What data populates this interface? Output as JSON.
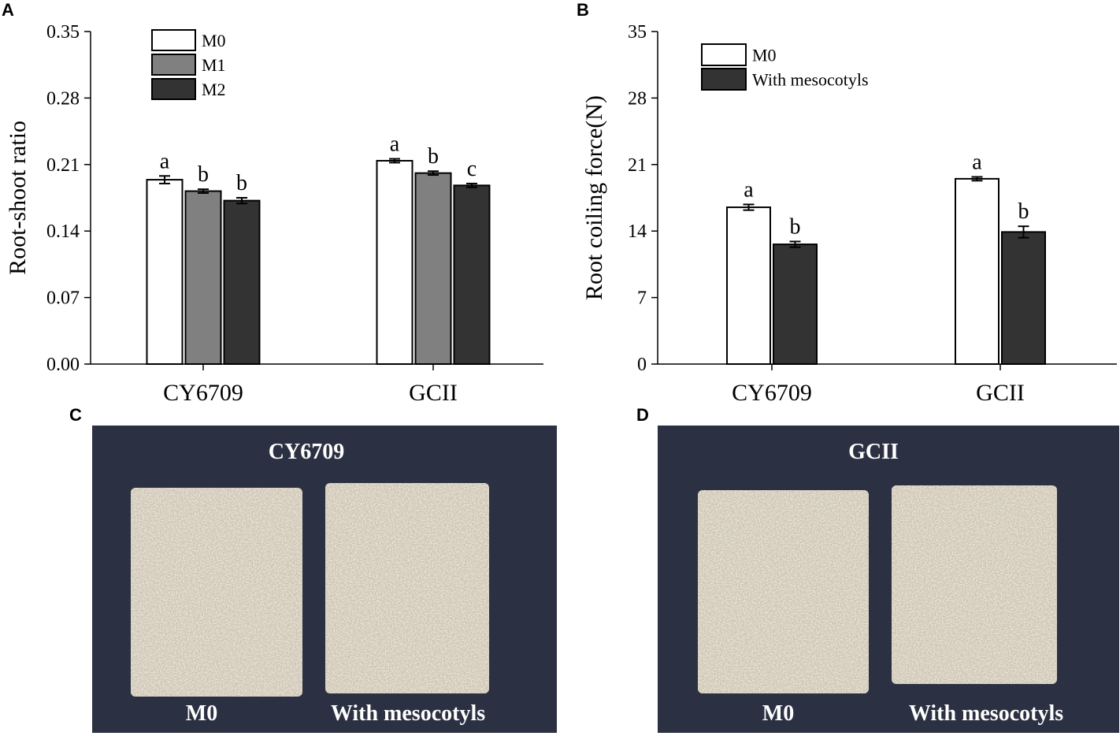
{
  "colors": {
    "m0": "#ffffff",
    "m1": "#808080",
    "m2": "#333333",
    "with_mesocotyls": "#333333",
    "photo_background": "#2b3142",
    "mat": "#cdc4b3"
  },
  "chart_data": [
    {
      "panel": "A",
      "type": "bar",
      "ylabel": "Root-shoot ratio",
      "xlabel": "",
      "ylim": [
        0,
        0.35
      ],
      "yticks": [
        "0.00",
        "0.07",
        "0.14",
        "0.21",
        "0.28",
        "0.35"
      ],
      "ytick_values": [
        0,
        0.07,
        0.14,
        0.21,
        0.28,
        0.35
      ],
      "categories": [
        "CY6709",
        "GCII"
      ],
      "legend_position": "top-left",
      "series": [
        {
          "name": "M0",
          "color_key": "m0",
          "values": [
            0.194,
            0.214
          ],
          "errors": [
            0.004,
            0.002
          ],
          "letters": [
            "a",
            "a"
          ]
        },
        {
          "name": "M1",
          "color_key": "m1",
          "values": [
            0.182,
            0.201
          ],
          "errors": [
            0.002,
            0.002
          ],
          "letters": [
            "b",
            "b"
          ]
        },
        {
          "name": "M2",
          "color_key": "m2",
          "values": [
            0.172,
            0.188
          ],
          "errors": [
            0.003,
            0.002
          ],
          "letters": [
            "b",
            "c"
          ]
        }
      ]
    },
    {
      "panel": "B",
      "type": "bar",
      "ylabel": "Root coiling force(N)",
      "xlabel": "",
      "ylim": [
        0,
        35
      ],
      "yticks": [
        "0",
        "7",
        "14",
        "21",
        "28",
        "35"
      ],
      "ytick_values": [
        0,
        7,
        14,
        21,
        28,
        35
      ],
      "categories": [
        "CY6709",
        "GCII"
      ],
      "legend_position": "top-left",
      "series": [
        {
          "name": "M0",
          "color_key": "m0",
          "values": [
            16.5,
            19.5
          ],
          "errors": [
            0.3,
            0.2
          ],
          "letters": [
            "a",
            "a"
          ]
        },
        {
          "name": "With mesocotyls",
          "color_key": "with_mesocotyls",
          "values": [
            12.6,
            13.9
          ],
          "errors": [
            0.3,
            0.6
          ],
          "letters": [
            "b",
            "b"
          ]
        }
      ]
    }
  ],
  "photos": [
    {
      "panel": "C",
      "title": "CY6709",
      "left_label": "M0",
      "right_label": "With mesocotyls"
    },
    {
      "panel": "D",
      "title": "GCII",
      "left_label": "M0",
      "right_label": "With mesocotyls"
    }
  ]
}
